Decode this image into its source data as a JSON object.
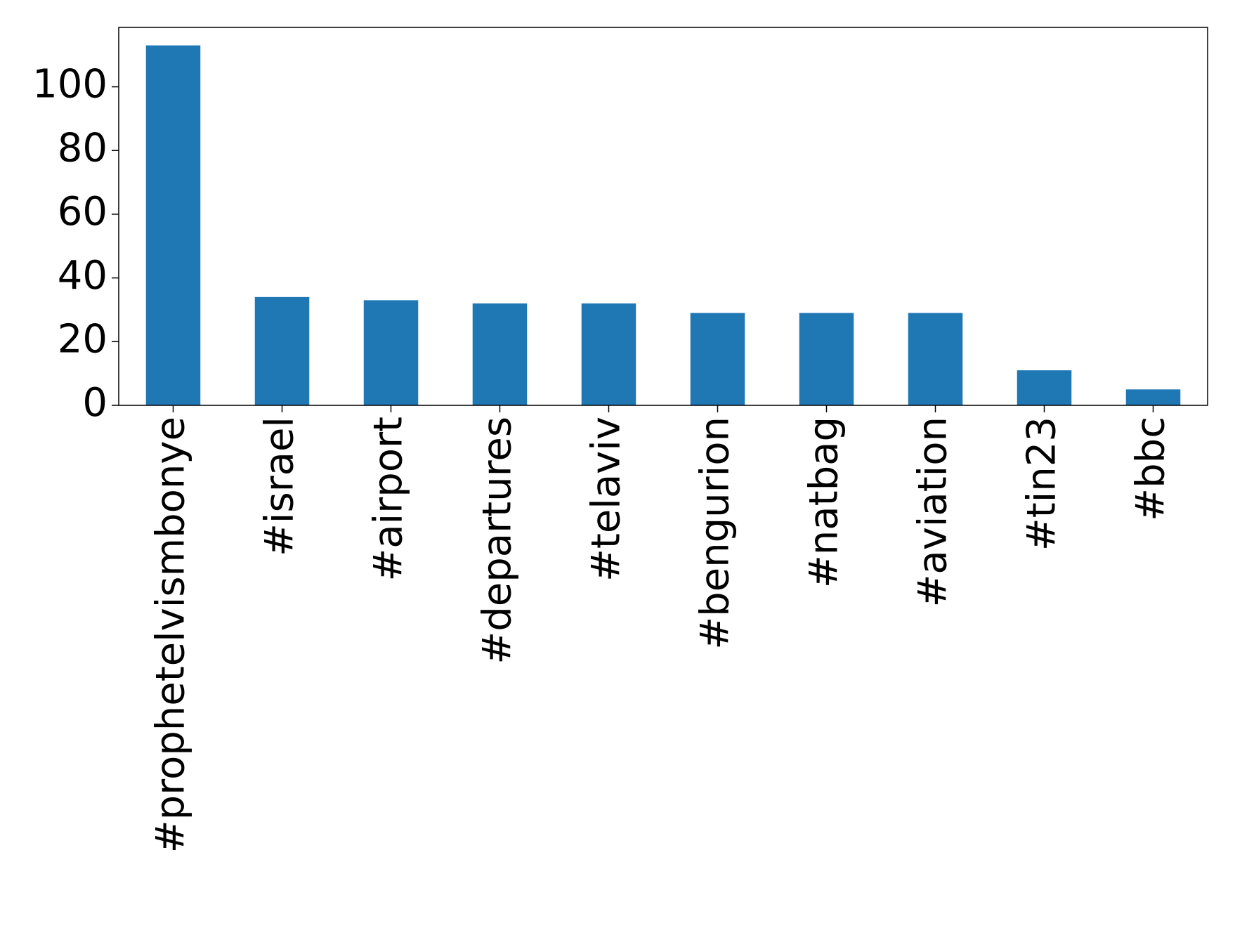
{
  "chart_data": {
    "type": "bar",
    "categories": [
      "#prophetelvismbonye",
      "#israel",
      "#airport",
      "#departures",
      "#telaviv",
      "#bengurion",
      "#natbag",
      "#aviation",
      "#tin23",
      "#bbc"
    ],
    "values": [
      113,
      34,
      33,
      32,
      32,
      29,
      29,
      29,
      11,
      5
    ],
    "color": "#1f77b4",
    "ylim": [
      0,
      118.65
    ],
    "yticks": [
      0,
      20,
      40,
      60,
      80,
      100
    ],
    "grid": false
  }
}
